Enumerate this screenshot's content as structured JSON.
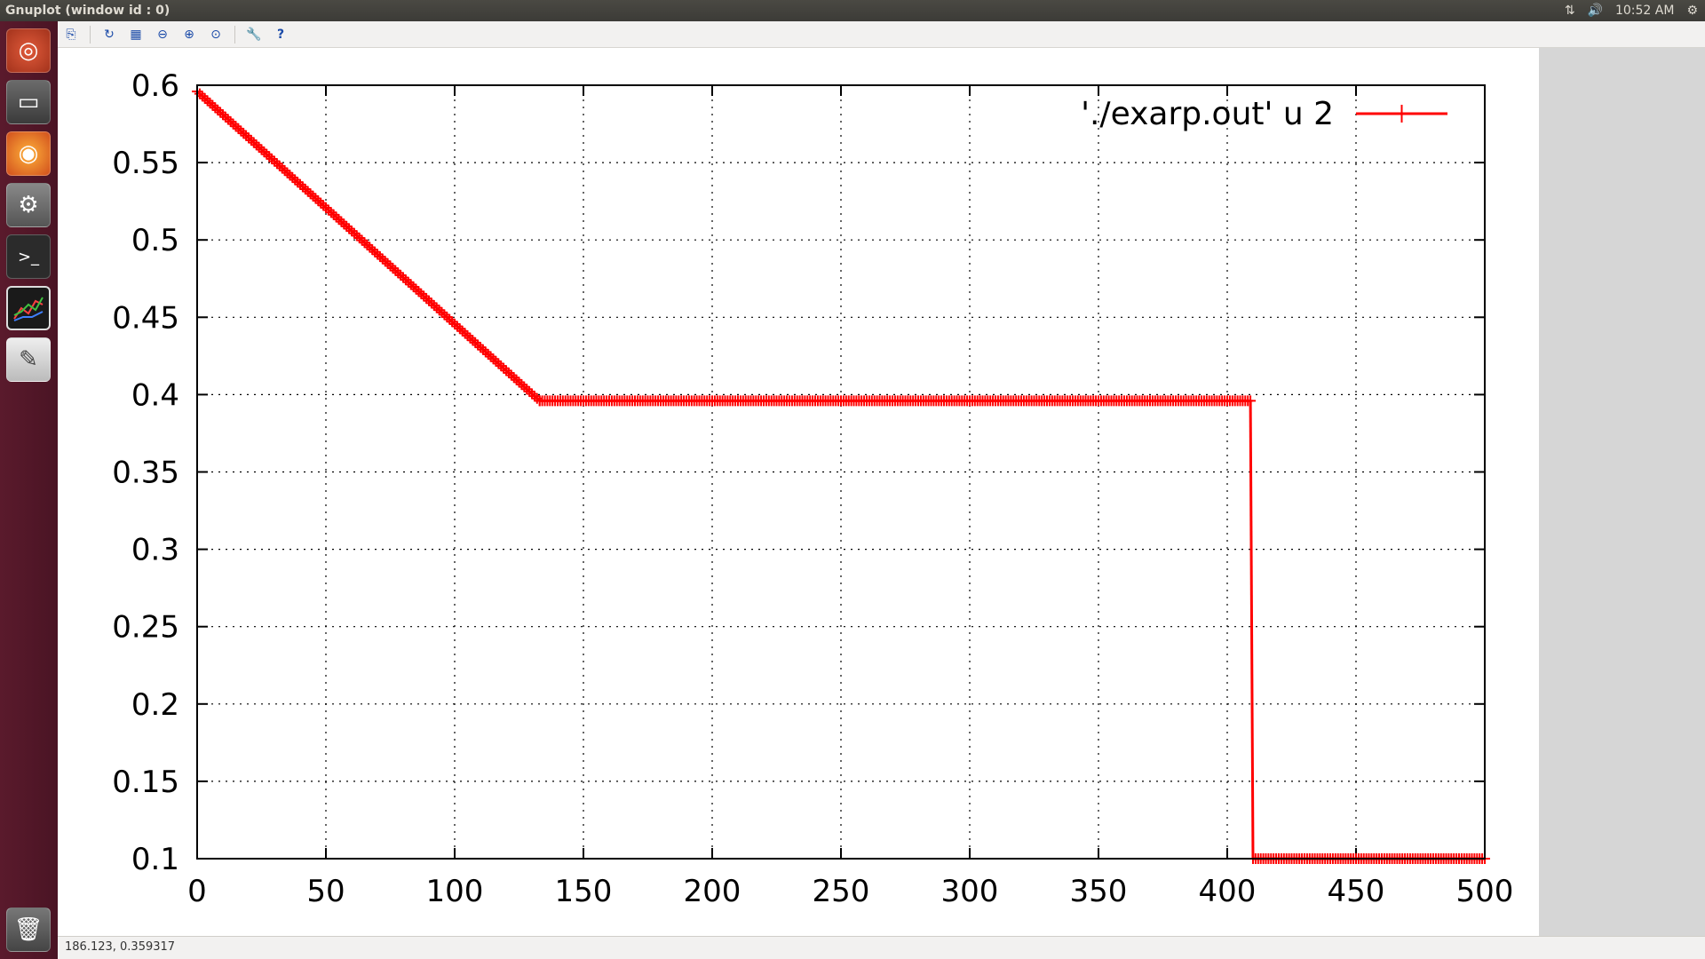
{
  "window": {
    "title": "Gnuplot (window id : 0)"
  },
  "topbar": {
    "time": "10:52 AM",
    "network_icon": "network-arrows-icon",
    "volume_icon": "volume-icon",
    "settings_icon": "gear-icon"
  },
  "launcher": {
    "items": [
      {
        "icon": "ubuntu-dash-icon"
      },
      {
        "icon": "file-manager-icon"
      },
      {
        "icon": "firefox-icon"
      },
      {
        "icon": "system-settings-icon"
      },
      {
        "icon": "terminal-icon"
      },
      {
        "icon": "gnuplot-icon"
      },
      {
        "icon": "text-editor-icon"
      },
      {
        "icon": "trash-icon"
      }
    ]
  },
  "toolbar": {
    "buttons": [
      {
        "icon": "copy-to-clipboard-icon"
      },
      {
        "icon": "replot-icon"
      },
      {
        "icon": "grid-icon"
      },
      {
        "icon": "zoom-previous-icon"
      },
      {
        "icon": "zoom-next-icon"
      },
      {
        "icon": "zoom-autoscale-icon"
      },
      {
        "icon": "preferences-icon"
      },
      {
        "icon": "help-icon"
      }
    ]
  },
  "statusbar": {
    "coords": "186.123,  0.359317"
  },
  "chart_data": {
    "type": "line",
    "title": "",
    "xlabel": "",
    "ylabel": "",
    "xlim": [
      0,
      500
    ],
    "ylim": [
      0.1,
      0.6
    ],
    "xticks": [
      "0",
      "50",
      "100",
      "150",
      "200",
      "250",
      "300",
      "350",
      "400",
      "450",
      "500"
    ],
    "yticks": [
      "0.1",
      "0.15",
      "0.2",
      "0.25",
      "0.3",
      "0.35",
      "0.4",
      "0.45",
      "0.5",
      "0.55",
      "0.6"
    ],
    "grid": true,
    "legend_position": "top-right",
    "series": [
      {
        "name": "'./exarp.out' u 2",
        "color": "#ff0000",
        "marker": "+",
        "segments": [
          {
            "x_start": 0,
            "x_end": 133,
            "y_start": 0.596,
            "y_end": 0.396
          },
          {
            "x_start": 133,
            "x_end": 409,
            "y_start": 0.396,
            "y_end": 0.396
          },
          {
            "x_start": 410,
            "x_end": 500,
            "y_start": 0.1,
            "y_end": 0.1
          }
        ]
      }
    ]
  }
}
